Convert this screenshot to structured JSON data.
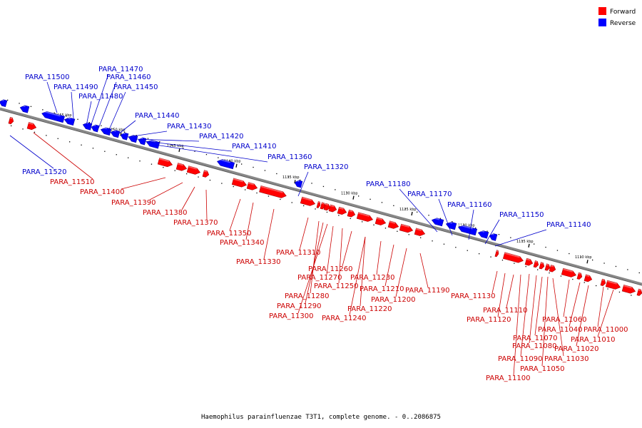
{
  "caption": "Haemophilus parainfluenzae T3T1, complete genome. - 0..2086875",
  "legend": [
    {
      "label": "Forward",
      "color": "#ff0000"
    },
    {
      "label": "Reverse",
      "color": "#0000ff"
    }
  ],
  "colors": {
    "forward": "#ff0000",
    "reverse": "#0000ff",
    "forward_label": "#cc0000",
    "reverse_label": "#0000cc",
    "backbone": "#888888"
  },
  "ticks": [
    "1155 kbp",
    "1150 kbp",
    "1145 kbp",
    "1140 kbp",
    "1135 kbp",
    "1130 kbp",
    "1125 kbp",
    "1120 kbp",
    "1115 kbp",
    "1110 kbp"
  ],
  "reverse_labels": [
    "PARA_11500",
    "PARA_11490",
    "PARA_11470",
    "PARA_11460",
    "PARA_11450",
    "PARA_11480",
    "PARA_11440",
    "PARA_11430",
    "PARA_11420",
    "PARA_11410",
    "PARA_11360",
    "PARA_11320",
    "PARA_11180",
    "PARA_11170",
    "PARA_11160",
    "PARA_11150",
    "PARA_11140",
    "PARA_11520"
  ],
  "forward_labels": [
    "PARA_11510",
    "PARA_11400",
    "PARA_11390",
    "PARA_11380",
    "PARA_11370",
    "PARA_11350",
    "PARA_11340",
    "PARA_11330",
    "PARA_11310",
    "PARA_11260",
    "PARA_11270",
    "PARA_11250",
    "PARA_11280",
    "PARA_11290",
    "PARA_11300",
    "PARA_11230",
    "PARA_11210",
    "PARA_11200",
    "PARA_11220",
    "PARA_11240",
    "PARA_11190",
    "PARA_11130",
    "PARA_11110",
    "PARA_11120",
    "PARA_11060",
    "PARA_11040",
    "PARA_11000",
    "PARA_11070",
    "PARA_11010",
    "PARA_11080",
    "PARA_11020",
    "PARA_11090",
    "PARA_11030",
    "PARA_11050",
    "PARA_11100"
  ]
}
